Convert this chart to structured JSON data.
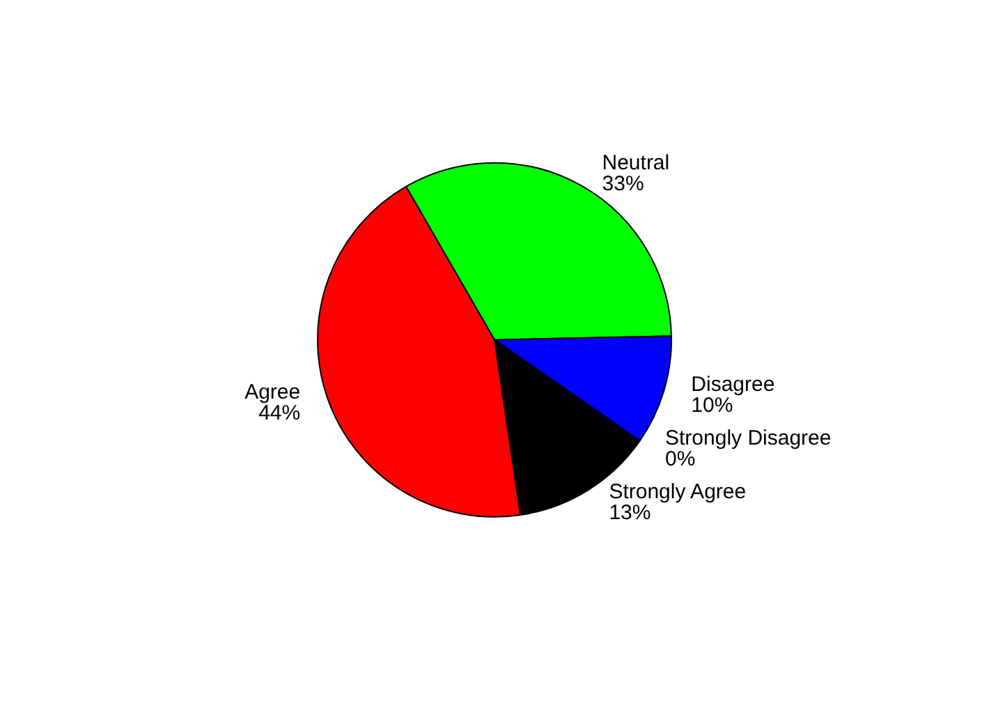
{
  "chart_data": {
    "type": "pie",
    "categories": [
      "Neutral",
      "Disagree",
      "Strongly Disagree",
      "Strongly Agree",
      "Agree"
    ],
    "values": [
      33,
      10,
      0,
      13,
      44
    ],
    "value_labels": [
      "33%",
      "10%",
      "0%",
      "13%",
      "44%"
    ],
    "colors": [
      "#00ff00",
      "#0000ff",
      null,
      "#000000",
      "#ff0000"
    ]
  }
}
